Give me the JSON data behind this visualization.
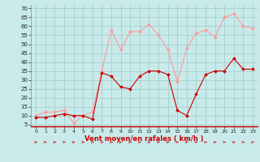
{
  "hours": [
    0,
    1,
    2,
    3,
    4,
    5,
    6,
    7,
    8,
    9,
    10,
    11,
    12,
    13,
    14,
    15,
    16,
    17,
    18,
    19,
    20,
    21,
    22,
    23
  ],
  "wind_avg": [
    9,
    9,
    10,
    11,
    10,
    10,
    8,
    34,
    32,
    26,
    25,
    32,
    35,
    35,
    33,
    13,
    10,
    22,
    33,
    35,
    35,
    42,
    36,
    36
  ],
  "wind_gust": [
    10,
    12,
    12,
    13,
    6,
    10,
    12,
    35,
    58,
    47,
    57,
    57,
    61,
    55,
    47,
    29,
    48,
    56,
    58,
    54,
    65,
    67,
    60,
    59
  ],
  "color_avg": "#cc0000",
  "color_gust": "#ff9999",
  "bg_color": "#c8eaea",
  "grid_color": "#a0c8c8",
  "xlabel": "Vent moyen/en rafales ( km/h )",
  "xlabel_color": "#cc0000",
  "yticks": [
    5,
    10,
    15,
    20,
    25,
    30,
    35,
    40,
    45,
    50,
    55,
    60,
    65,
    70
  ],
  "ylim": [
    4,
    72
  ],
  "xlim": [
    -0.5,
    23.5
  ],
  "arrow_color": "#cc0000"
}
